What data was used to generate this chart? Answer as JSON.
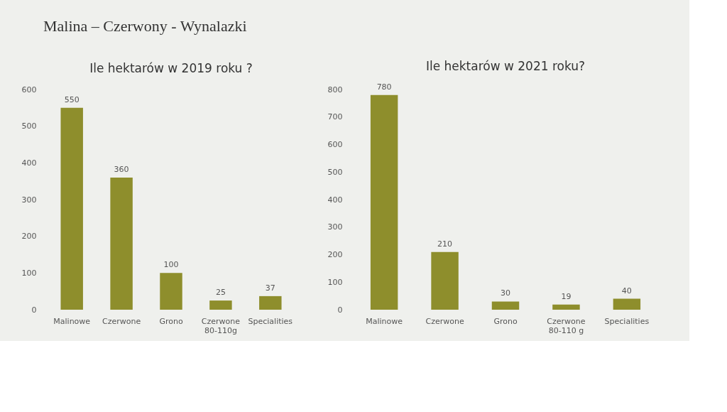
{
  "chart_data": [
    {
      "type": "other",
      "title": "Malina – Czerwony - Wynalazki"
    },
    {
      "type": "bar",
      "title": "Ile hektarów w 2019 roku ?",
      "categories": [
        "Malinowe",
        "Czerwone",
        "Grono",
        "Czerwone 80-110g",
        "Specialities"
      ],
      "values": [
        550,
        360,
        100,
        25,
        37
      ],
      "color": "#8e8e2c",
      "ylim": [
        0,
        600
      ],
      "yticks": [
        0,
        100,
        200,
        300,
        400,
        500,
        600
      ],
      "data_labels": true
    },
    {
      "type": "bar",
      "title": "Ile hektarów w 2021 roku?",
      "categories": [
        "Malinowe",
        "Czerwone",
        "Grono",
        "Czerwone 80-110 g",
        "Specialities"
      ],
      "values": [
        780,
        210,
        30,
        19,
        40
      ],
      "color": "#8e8e2c",
      "ylim": [
        0,
        800
      ],
      "yticks": [
        0,
        100,
        200,
        300,
        400,
        500,
        600,
        700,
        800
      ],
      "data_labels": true
    }
  ]
}
